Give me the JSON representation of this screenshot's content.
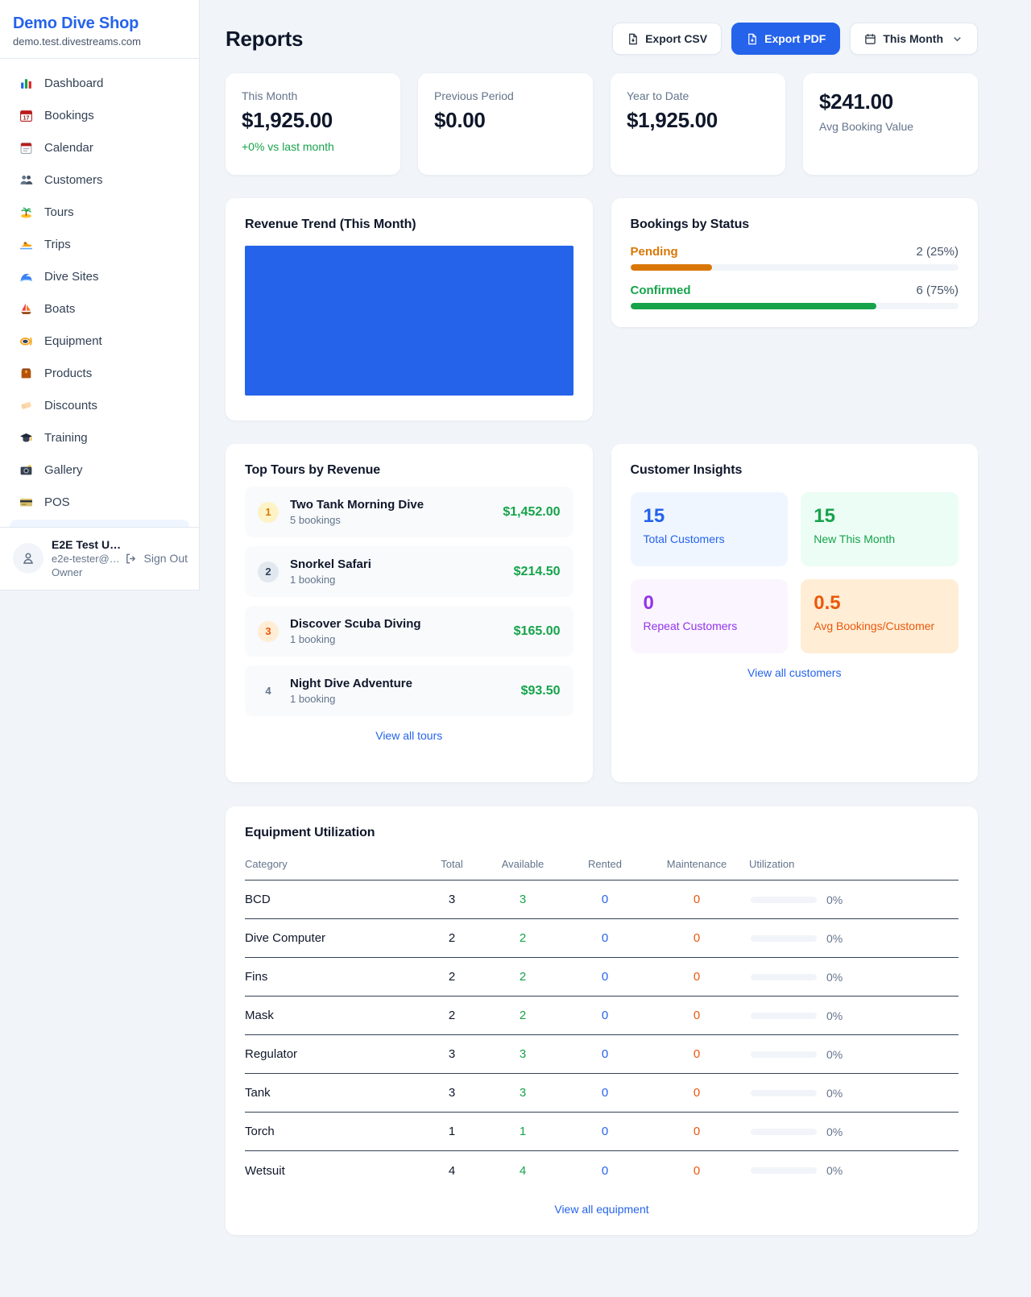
{
  "sidebar": {
    "shop_name": "Demo Dive Shop",
    "shop_domain": "demo.test.divestreams.com",
    "items": [
      {
        "icon": "bar-chart-icon",
        "label": "Dashboard"
      },
      {
        "icon": "calendar-date-icon",
        "label": "Bookings"
      },
      {
        "icon": "calendar-tear-icon",
        "label": "Calendar"
      },
      {
        "icon": "users-icon",
        "label": "Customers"
      },
      {
        "icon": "island-icon",
        "label": "Tours"
      },
      {
        "icon": "speedboat-icon",
        "label": "Trips"
      },
      {
        "icon": "wave-icon",
        "label": "Dive Sites"
      },
      {
        "icon": "sailboat-icon",
        "label": "Boats"
      },
      {
        "icon": "scuba-mask-icon",
        "label": "Equipment"
      },
      {
        "icon": "box-icon",
        "label": "Products"
      },
      {
        "icon": "tag-icon",
        "label": "Discounts"
      },
      {
        "icon": "grad-cap-icon",
        "label": "Training"
      },
      {
        "icon": "camera-icon",
        "label": "Gallery"
      },
      {
        "icon": "credit-card-icon",
        "label": "POS"
      }
    ],
    "user": {
      "name": "E2E Test U…",
      "email": "e2e-tester@…",
      "role": "Owner",
      "sign_out": "Sign Out"
    }
  },
  "header": {
    "title": "Reports",
    "export_csv": "Export CSV",
    "export_pdf": "Export PDF",
    "period": "This Month"
  },
  "stats": [
    {
      "label": "This Month",
      "value": "$1,925.00",
      "delta": "+0% vs last month"
    },
    {
      "label": "Previous Period",
      "value": "$0.00"
    },
    {
      "label": "Year to Date",
      "value": "$1,925.00"
    },
    {
      "label": "Avg Booking Value",
      "value": "$241.00",
      "value_first": true
    }
  ],
  "revenue_trend": {
    "title": "Revenue Trend (This Month)",
    "bar_color": "#2563eb",
    "bar_fill_pct": 100
  },
  "bookings_by_status": {
    "title": "Bookings by Status",
    "rows": [
      {
        "label": "Pending",
        "value": "2 (25%)",
        "pct": 25,
        "color": "#d97706"
      },
      {
        "label": "Confirmed",
        "value": "6 (75%)",
        "pct": 75,
        "color": "#16a34a"
      }
    ]
  },
  "top_tours": {
    "title": "Top Tours by Revenue",
    "items": [
      {
        "rank": "1",
        "name": "Two Tank Morning Dive",
        "bookings": "5 bookings",
        "amount": "$1,452.00",
        "badge_bg": "#fef3c7",
        "badge_color": "#d97706"
      },
      {
        "rank": "2",
        "name": "Snorkel Safari",
        "bookings": "1 booking",
        "amount": "$214.50",
        "badge_bg": "#e2e8f0",
        "badge_color": "#334155"
      },
      {
        "rank": "3",
        "name": "Discover Scuba Diving",
        "bookings": "1 booking",
        "amount": "$165.00",
        "badge_bg": "#ffedd5",
        "badge_color": "#ea580c"
      },
      {
        "rank": "4",
        "name": "Night Dive Adventure",
        "bookings": "1 booking",
        "amount": "$93.50",
        "badge_bg": "transparent",
        "badge_color": "#64748b"
      }
    ],
    "view_all": "View all tours"
  },
  "customer_insights": {
    "title": "Customer Insights",
    "tiles": [
      {
        "value": "15",
        "label": "Total Customers",
        "bg": "#eff6ff",
        "color": "#2563eb"
      },
      {
        "value": "15",
        "label": "New This Month",
        "bg": "#ecfdf5",
        "color": "#16a34a"
      },
      {
        "value": "0",
        "label": "Repeat Customers",
        "bg": "#faf5ff",
        "color": "#9333ea"
      },
      {
        "value": "0.5",
        "label": "Avg Bookings/Customer",
        "bg": "#ffedd5",
        "color": "#ea580c"
      }
    ],
    "view_all": "View all customers"
  },
  "equipment": {
    "title": "Equipment Utilization",
    "columns": [
      "Category",
      "Total",
      "Available",
      "Rented",
      "Maintenance",
      "Utilization"
    ],
    "value_colors": {
      "total": "#0f172a",
      "available": "#16a34a",
      "rented": "#2563eb",
      "maintenance": "#ea580c"
    },
    "rows": [
      {
        "category": "BCD",
        "total": "3",
        "available": "3",
        "rented": "0",
        "maintenance": "0",
        "utilization": "0%",
        "util_pct": 0
      },
      {
        "category": "Dive Computer",
        "total": "2",
        "available": "2",
        "rented": "0",
        "maintenance": "0",
        "utilization": "0%",
        "util_pct": 0
      },
      {
        "category": "Fins",
        "total": "2",
        "available": "2",
        "rented": "0",
        "maintenance": "0",
        "utilization": "0%",
        "util_pct": 0
      },
      {
        "category": "Mask",
        "total": "2",
        "available": "2",
        "rented": "0",
        "maintenance": "0",
        "utilization": "0%",
        "util_pct": 0
      },
      {
        "category": "Regulator",
        "total": "3",
        "available": "3",
        "rented": "0",
        "maintenance": "0",
        "utilization": "0%",
        "util_pct": 0
      },
      {
        "category": "Tank",
        "total": "3",
        "available": "3",
        "rented": "0",
        "maintenance": "0",
        "utilization": "0%",
        "util_pct": 0
      },
      {
        "category": "Torch",
        "total": "1",
        "available": "1",
        "rented": "0",
        "maintenance": "0",
        "utilization": "0%",
        "util_pct": 0
      },
      {
        "category": "Wetsuit",
        "total": "4",
        "available": "4",
        "rented": "0",
        "maintenance": "0",
        "utilization": "0%",
        "util_pct": 0
      }
    ],
    "view_all": "View all equipment"
  }
}
